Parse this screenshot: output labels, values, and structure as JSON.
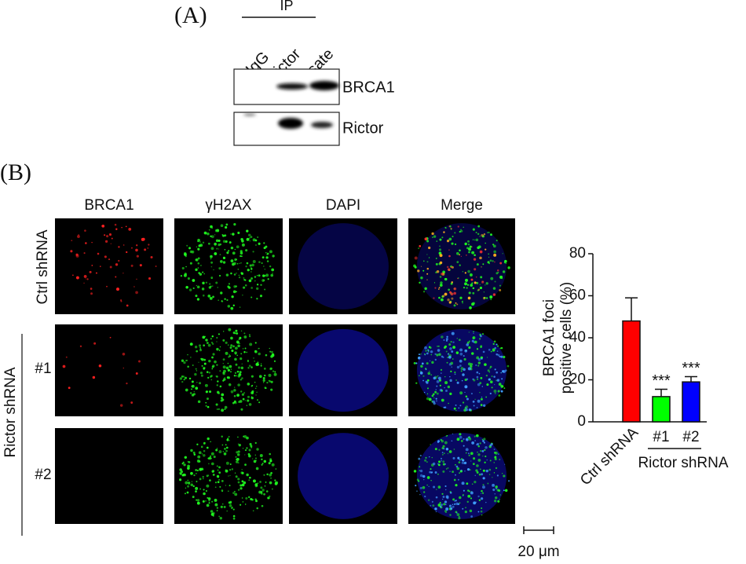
{
  "panel_a": {
    "label": "(A)",
    "ip": "IP",
    "lanes": [
      "IgG",
      "Rictor",
      "Lysate"
    ],
    "blots": [
      "BRCA1",
      "Rictor"
    ]
  },
  "panel_b": {
    "label": "(B)",
    "columns": [
      "BRCA1",
      "γH2AX",
      "DAPI",
      "Merge"
    ],
    "row_group": "Rictor shRNA",
    "rows": [
      "Ctrl shRNA",
      "#1",
      "#2"
    ],
    "scale_bar": "20 μm"
  },
  "chart_data": {
    "type": "bar",
    "ylabel_lines": [
      "BRCA1 foci",
      "positive cells (%)"
    ],
    "categories": [
      "Ctrl shRNA",
      "#1",
      "#2"
    ],
    "values": [
      48,
      12,
      19
    ],
    "errors": [
      11,
      3.5,
      2.5
    ],
    "colors": [
      "#ff0000",
      "#00ff00",
      "#0000ff"
    ],
    "annotations": [
      null,
      "***",
      "***"
    ],
    "group_label": "Rictor shRNA",
    "ylim": [
      0,
      80
    ],
    "yticks": [
      0,
      20,
      40,
      60,
      80
    ]
  }
}
